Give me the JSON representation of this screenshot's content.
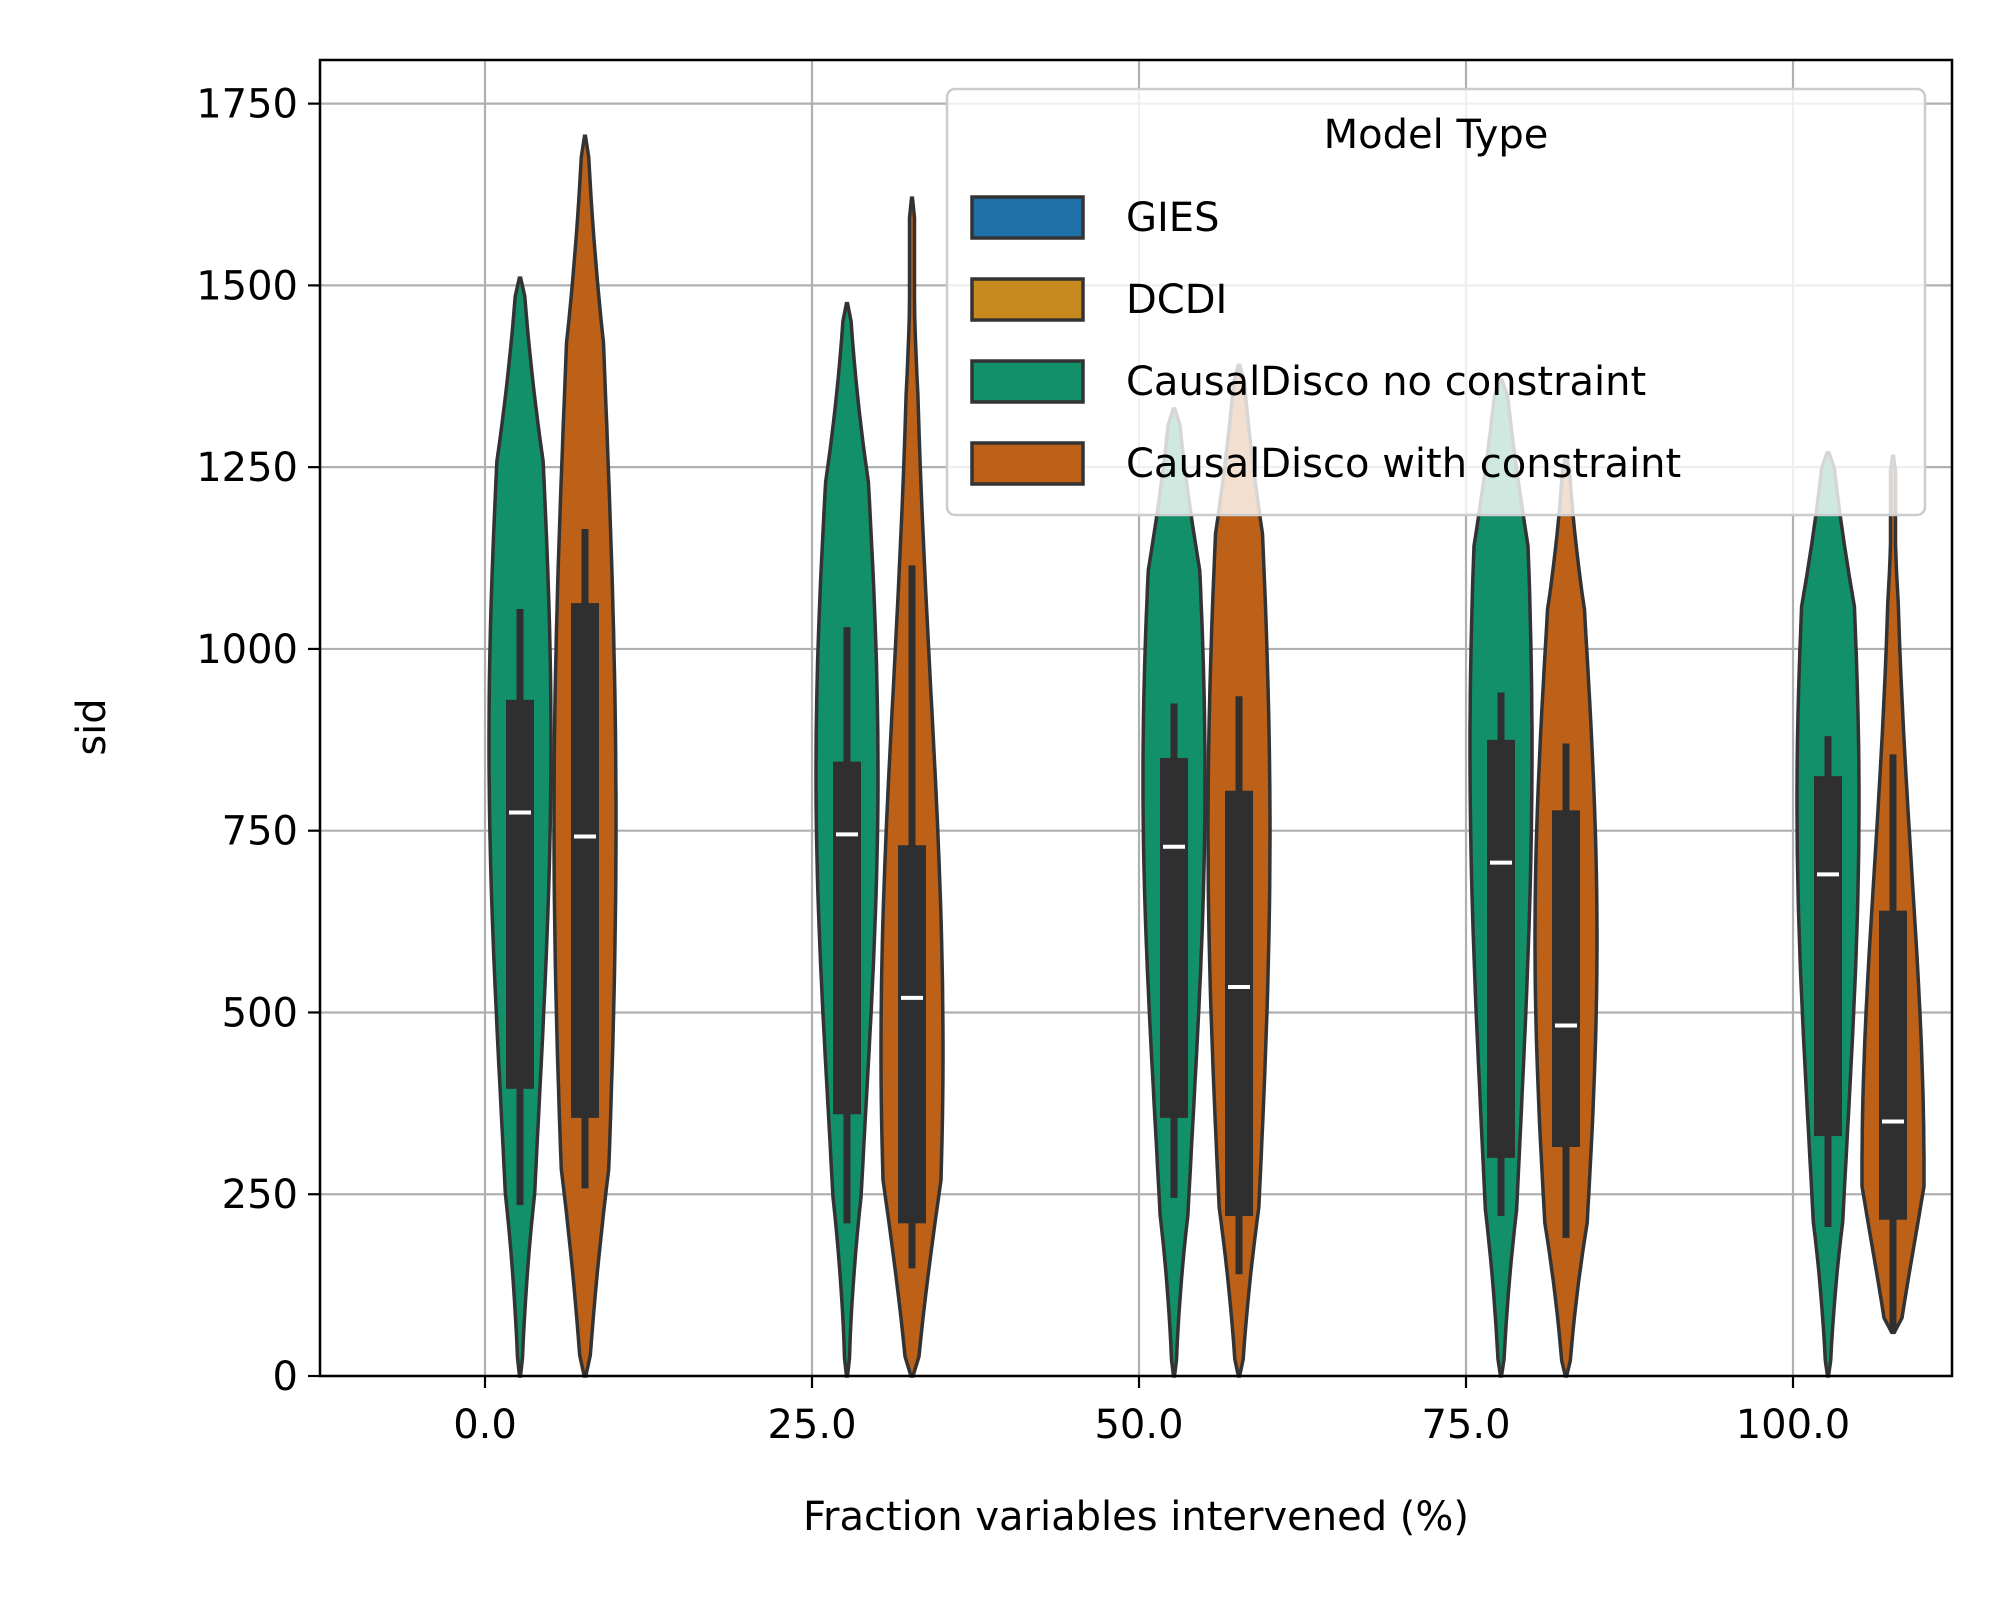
{
  "chart_data": {
    "type": "violin",
    "xlabel": "Fraction variables intervened (%)",
    "ylabel": "sid",
    "categories": [
      "0.0",
      "25.0",
      "50.0",
      "75.0",
      "100.0"
    ],
    "ylim": [
      0,
      1810
    ],
    "yticks": [
      0,
      250,
      500,
      750,
      1000,
      1250,
      1500,
      1750
    ],
    "ytick_labels": [
      "0",
      "250",
      "500",
      "750",
      "1000",
      "1250",
      "1500",
      "1750"
    ],
    "grid": true,
    "legend": {
      "title": "Model Type",
      "placement": "upper right",
      "entries": [
        {
          "label": "GIES",
          "color": "#1f6fa8"
        },
        {
          "label": "DCDI",
          "color": "#c88a1e"
        },
        {
          "label": "CausalDisco no constraint",
          "color": "#12906a"
        },
        {
          "label": "CausalDisco with constraint",
          "color": "#bd6118"
        }
      ]
    },
    "series": [
      {
        "name": "CausalDisco no constraint",
        "color": "#12906a",
        "violins": [
          {
            "min": 0,
            "max": 1510,
            "q1": 395,
            "median": 775,
            "q3": 930,
            "whisker_low": 235,
            "whisker_high": 1055,
            "mode": 870
          },
          {
            "min": 0,
            "max": 1475,
            "q1": 360,
            "median": 745,
            "q3": 845,
            "whisker_low": 210,
            "whisker_high": 1030,
            "mode": 830
          },
          {
            "min": 0,
            "max": 1330,
            "q1": 355,
            "median": 728,
            "q3": 850,
            "whisker_low": 245,
            "whisker_high": 925,
            "mode": 820
          },
          {
            "min": 0,
            "max": 1370,
            "q1": 300,
            "median": 706,
            "q3": 875,
            "whisker_low": 220,
            "whisker_high": 940,
            "mode": 860
          },
          {
            "min": 0,
            "max": 1270,
            "q1": 330,
            "median": 690,
            "q3": 825,
            "whisker_low": 205,
            "whisker_high": 880,
            "mode": 790
          }
        ]
      },
      {
        "name": "CausalDisco with constraint",
        "color": "#bd6118",
        "violins": [
          {
            "min": 0,
            "max": 1705,
            "q1": 355,
            "median": 742,
            "q3": 1063,
            "whisker_low": 258,
            "whisker_high": 1165,
            "mode": 760
          },
          {
            "min": 0,
            "max": 1620,
            "q1": 210,
            "median": 520,
            "q3": 730,
            "whisker_low": 148,
            "whisker_high": 1115,
            "mode": 450
          },
          {
            "min": 0,
            "max": 1390,
            "q1": 220,
            "median": 535,
            "q3": 805,
            "whisker_low": 140,
            "whisker_high": 935,
            "mode": 750
          },
          {
            "min": 0,
            "max": 1265,
            "q1": 315,
            "median": 482,
            "q3": 778,
            "whisker_low": 190,
            "whisker_high": 870,
            "mode": 600
          },
          {
            "min": 60,
            "max": 1265,
            "q1": 215,
            "median": 350,
            "q3": 640,
            "whisker_low": 60,
            "whisker_high": 855,
            "mode": 280
          }
        ]
      }
    ]
  }
}
